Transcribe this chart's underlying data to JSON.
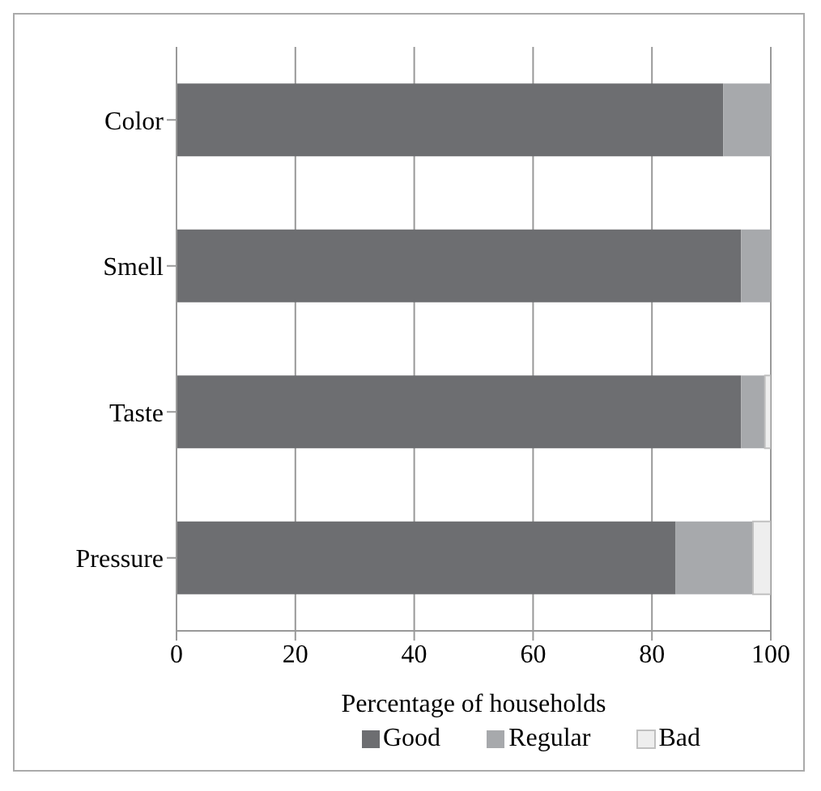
{
  "chart_data": {
    "type": "bar",
    "orientation": "horizontal",
    "stacked": true,
    "xlabel": "Percentage of households",
    "categories": [
      "Color",
      "Smell",
      "Taste",
      "Pressure"
    ],
    "series": [
      {
        "name": "Good",
        "color": "#6d6e71",
        "values": [
          92,
          95,
          95,
          84
        ]
      },
      {
        "name": "Regular",
        "color": "#a7a9ac",
        "values": [
          8,
          5,
          4,
          13
        ]
      },
      {
        "name": "Bad",
        "color": "#eeeeee",
        "values": [
          0,
          0,
          1,
          3
        ]
      }
    ],
    "xlim": [
      0,
      100
    ],
    "xticks": [
      0,
      20,
      40,
      60,
      80,
      100
    ],
    "grid": "x",
    "legend": "bottom"
  }
}
